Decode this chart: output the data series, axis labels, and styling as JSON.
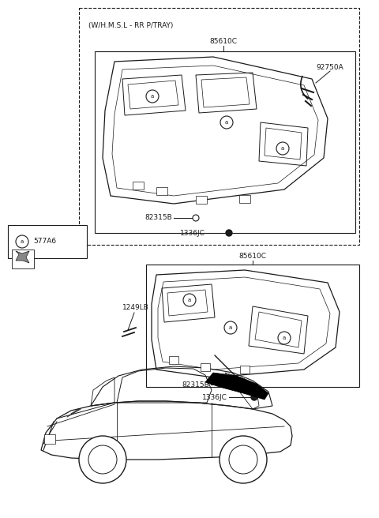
{
  "bg_color": "#ffffff",
  "line_color": "#1a1a1a",
  "whmsl_text": "(W/H.M.S.L - RR P/TRAY)",
  "label_85610C_top": "85610C",
  "label_92750A": "92750A",
  "label_82315B_top": "82315B",
  "label_1336JC_top": "1336JC",
  "label_85610C_bot": "85610C",
  "label_577A6": "577A6",
  "label_1249LB": "1249LB",
  "label_82315B_bot": "82315B",
  "label_1336JC_bot": "1336JC"
}
